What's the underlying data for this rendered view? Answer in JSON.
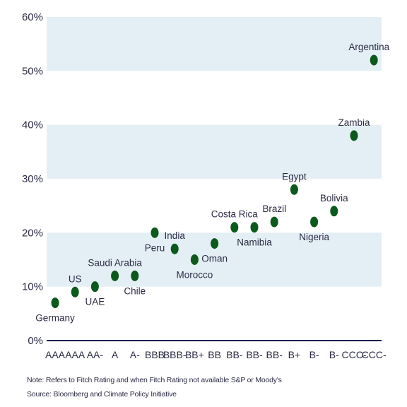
{
  "chart_data": {
    "type": "scatter",
    "title": "",
    "xlabel": "",
    "ylabel": "",
    "ylim": [
      0,
      60
    ],
    "y_ticks": [
      "0%",
      "10%",
      "20%",
      "30%",
      "40%",
      "50%",
      "60%"
    ],
    "y_tick_values": [
      0,
      10,
      20,
      30,
      40,
      50,
      60
    ],
    "grid": "alternating horizontal bands",
    "categories": [
      "AAA",
      "AAA",
      "AA-",
      "A",
      "A-",
      "BBB",
      "BBB-",
      "BB+",
      "BB",
      "BB-",
      "BB-",
      "BB-",
      "B+",
      "B-",
      "B-",
      "CCC-",
      "CCC-"
    ],
    "points": [
      {
        "label": "Germany",
        "rating": "AAA",
        "value": 7,
        "label_pos": "below"
      },
      {
        "label": "US",
        "rating": "AAA",
        "value": 9,
        "label_pos": "above"
      },
      {
        "label": "UAE",
        "rating": "AA-",
        "value": 10,
        "label_pos": "below"
      },
      {
        "label": "Saudi Arabia",
        "rating": "A",
        "value": 12,
        "label_pos": "above"
      },
      {
        "label": "Chile",
        "rating": "A-",
        "value": 12,
        "label_pos": "below"
      },
      {
        "label": "Peru",
        "rating": "BBB",
        "value": 20,
        "label_pos": "below"
      },
      {
        "label": "India",
        "rating": "BBB-",
        "value": 17,
        "label_pos": "above"
      },
      {
        "label": "Morocco",
        "rating": "BB+",
        "value": 15,
        "label_pos": "below"
      },
      {
        "label": "Oman",
        "rating": "BB",
        "value": 18,
        "label_pos": "below"
      },
      {
        "label": "Costa Rica",
        "rating": "BB-",
        "value": 21,
        "label_pos": "above"
      },
      {
        "label": "Namibia",
        "rating": "BB-",
        "value": 21,
        "label_pos": "below"
      },
      {
        "label": "Brazil",
        "rating": "BB-",
        "value": 22,
        "label_pos": "above"
      },
      {
        "label": "Egypt",
        "rating": "B+",
        "value": 28,
        "label_pos": "above"
      },
      {
        "label": "Nigeria",
        "rating": "B-",
        "value": 22,
        "label_pos": "below"
      },
      {
        "label": "Bolivia",
        "rating": "B-",
        "value": 24,
        "label_pos": "above"
      },
      {
        "label": "Zambia",
        "rating": "CCC-",
        "value": 38,
        "label_pos": "above"
      },
      {
        "label": "Argentina",
        "rating": "CCC-",
        "value": 52,
        "label_pos": "above"
      }
    ],
    "colors": {
      "marker": "#0b5a1c",
      "band": "#e4eff5",
      "axis": "#1c1c4a",
      "text": "#2b2b45"
    }
  },
  "notes": {
    "note": "Note: Refers to Fitch Rating and when Fitch Rating not available S&P or Moody's",
    "source": "Source: Bloomberg and Climate Policy Initiative"
  }
}
